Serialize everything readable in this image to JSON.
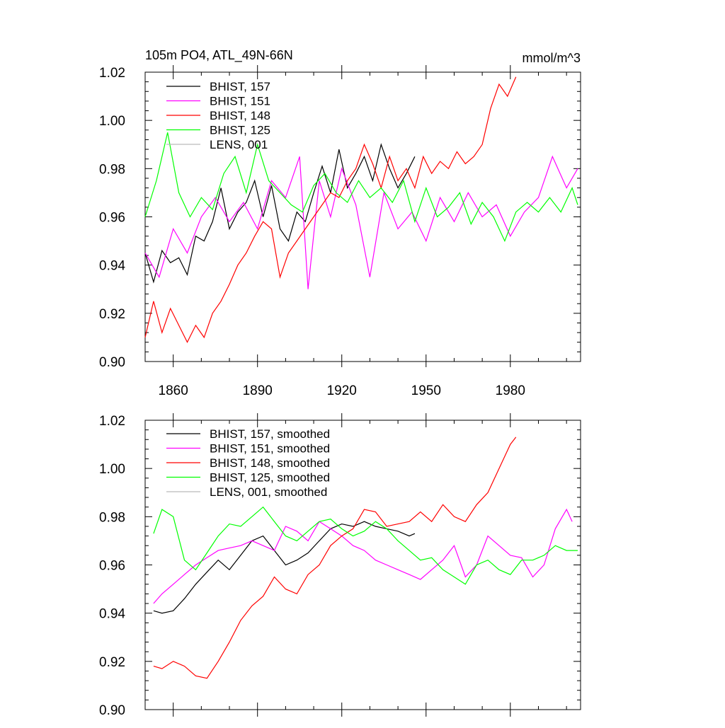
{
  "chart_data": [
    {
      "type": "line",
      "title": "105m PO4, ATL_49N-66N",
      "units": "mmol/m^3",
      "xlim": [
        1850,
        2005
      ],
      "ylim": [
        0.9,
        1.02
      ],
      "xticks": [
        1860,
        1890,
        1920,
        1950,
        1980
      ],
      "yticks": [
        "0.90",
        "0.92",
        "0.94",
        "0.96",
        "0.98",
        "1.00",
        "1.02"
      ],
      "series": [
        {
          "name": "BHIST, 157",
          "color": "#000000",
          "x": [
            1850,
            1853,
            1856,
            1859,
            1862,
            1865,
            1868,
            1871,
            1874,
            1877,
            1880,
            1883,
            1886,
            1889,
            1892,
            1895,
            1898,
            1901,
            1904,
            1907,
            1910,
            1913,
            1916,
            1919,
            1922,
            1925,
            1928,
            1931,
            1934,
            1937,
            1940,
            1943,
            1946
          ],
          "y": [
            0.945,
            0.933,
            0.946,
            0.941,
            0.943,
            0.936,
            0.952,
            0.95,
            0.958,
            0.972,
            0.955,
            0.962,
            0.966,
            0.975,
            0.96,
            0.973,
            0.955,
            0.95,
            0.962,
            0.958,
            0.97,
            0.981,
            0.97,
            0.988,
            0.972,
            0.978,
            0.985,
            0.975,
            0.99,
            0.98,
            0.972,
            0.978,
            0.985
          ]
        },
        {
          "name": "BHIST, 151",
          "color": "#ff00ff",
          "x": [
            1850,
            1855,
            1860,
            1865,
            1870,
            1875,
            1880,
            1885,
            1890,
            1895,
            1900,
            1905,
            1908,
            1912,
            1916,
            1920,
            1925,
            1930,
            1935,
            1940,
            1945,
            1950,
            1955,
            1960,
            1965,
            1970,
            1975,
            1980,
            1985,
            1990,
            1995,
            2000,
            2004
          ],
          "y": [
            0.945,
            0.935,
            0.955,
            0.945,
            0.96,
            0.968,
            0.958,
            0.966,
            0.955,
            0.975,
            0.968,
            0.985,
            0.93,
            0.975,
            0.96,
            0.98,
            0.965,
            0.935,
            0.97,
            0.955,
            0.962,
            0.95,
            0.968,
            0.958,
            0.97,
            0.96,
            0.965,
            0.952,
            0.962,
            0.968,
            0.985,
            0.972,
            0.98
          ]
        },
        {
          "name": "BHIST, 148",
          "color": "#ff0000",
          "x": [
            1850,
            1853,
            1856,
            1859,
            1862,
            1865,
            1868,
            1871,
            1874,
            1877,
            1880,
            1883,
            1886,
            1889,
            1892,
            1895,
            1898,
            1901,
            1904,
            1907,
            1910,
            1913,
            1916,
            1919,
            1922,
            1925,
            1928,
            1931,
            1934,
            1937,
            1940,
            1943,
            1946,
            1949,
            1952,
            1955,
            1958,
            1961,
            1964,
            1967,
            1970,
            1973,
            1976,
            1979,
            1982
          ],
          "y": [
            0.91,
            0.925,
            0.912,
            0.922,
            0.915,
            0.908,
            0.915,
            0.91,
            0.92,
            0.925,
            0.932,
            0.94,
            0.945,
            0.952,
            0.958,
            0.955,
            0.935,
            0.945,
            0.95,
            0.955,
            0.96,
            0.965,
            0.97,
            0.968,
            0.975,
            0.98,
            0.99,
            0.982,
            0.972,
            0.985,
            0.975,
            0.98,
            0.972,
            0.985,
            0.978,
            0.983,
            0.98,
            0.987,
            0.982,
            0.985,
            0.99,
            1.005,
            1.015,
            1.01,
            1.018
          ]
        },
        {
          "name": "BHIST, 125",
          "color": "#00ff00",
          "x": [
            1850,
            1854,
            1858,
            1862,
            1866,
            1870,
            1874,
            1878,
            1882,
            1886,
            1890,
            1894,
            1898,
            1902,
            1906,
            1910,
            1914,
            1918,
            1922,
            1926,
            1930,
            1934,
            1938,
            1942,
            1946,
            1950,
            1954,
            1958,
            1962,
            1966,
            1970,
            1974,
            1978,
            1982,
            1986,
            1990,
            1994,
            1998,
            2002,
            2004
          ],
          "y": [
            0.96,
            0.975,
            0.995,
            0.97,
            0.96,
            0.968,
            0.963,
            0.978,
            0.985,
            0.97,
            0.99,
            0.975,
            0.97,
            0.965,
            0.962,
            0.973,
            0.978,
            0.97,
            0.966,
            0.975,
            0.968,
            0.972,
            0.966,
            0.975,
            0.958,
            0.972,
            0.96,
            0.964,
            0.97,
            0.957,
            0.966,
            0.96,
            0.95,
            0.962,
            0.966,
            0.962,
            0.968,
            0.962,
            0.972,
            0.965
          ]
        },
        {
          "name": "LENS, 001",
          "color": "#bbbbbb",
          "x": [],
          "y": []
        }
      ]
    },
    {
      "type": "line",
      "title": "",
      "xlim": [
        1850,
        2005
      ],
      "ylim": [
        0.9,
        1.02
      ],
      "yticks": [
        "0.90",
        "0.92",
        "0.94",
        "0.96",
        "0.98",
        "1.00",
        "1.02"
      ],
      "series": [
        {
          "name": "BHIST, 157, smoothed",
          "color": "#000000",
          "x": [
            1853,
            1856,
            1860,
            1864,
            1868,
            1872,
            1876,
            1880,
            1884,
            1888,
            1892,
            1896,
            1900,
            1904,
            1908,
            1912,
            1916,
            1920,
            1924,
            1928,
            1932,
            1936,
            1940,
            1944,
            1946
          ],
          "y": [
            0.941,
            0.94,
            0.941,
            0.946,
            0.952,
            0.957,
            0.962,
            0.958,
            0.964,
            0.97,
            0.972,
            0.966,
            0.96,
            0.962,
            0.965,
            0.97,
            0.975,
            0.977,
            0.976,
            0.978,
            0.976,
            0.975,
            0.974,
            0.972,
            0.973
          ]
        },
        {
          "name": "BHIST, 151, smoothed",
          "color": "#ff00ff",
          "x": [
            1853,
            1856,
            1860,
            1864,
            1868,
            1872,
            1876,
            1880,
            1884,
            1888,
            1892,
            1896,
            1900,
            1904,
            1908,
            1912,
            1916,
            1920,
            1924,
            1928,
            1932,
            1936,
            1940,
            1944,
            1948,
            1952,
            1956,
            1960,
            1964,
            1968,
            1972,
            1976,
            1980,
            1984,
            1988,
            1992,
            1996,
            2000,
            2002
          ],
          "y": [
            0.944,
            0.948,
            0.952,
            0.956,
            0.96,
            0.963,
            0.966,
            0.967,
            0.968,
            0.97,
            0.968,
            0.966,
            0.976,
            0.974,
            0.97,
            0.978,
            0.975,
            0.972,
            0.968,
            0.966,
            0.962,
            0.96,
            0.958,
            0.956,
            0.954,
            0.958,
            0.962,
            0.968,
            0.955,
            0.96,
            0.972,
            0.968,
            0.964,
            0.963,
            0.955,
            0.96,
            0.975,
            0.983,
            0.978
          ]
        },
        {
          "name": "BHIST, 148, smoothed",
          "color": "#ff0000",
          "x": [
            1853,
            1856,
            1860,
            1864,
            1868,
            1872,
            1876,
            1880,
            1884,
            1888,
            1892,
            1896,
            1900,
            1904,
            1908,
            1912,
            1916,
            1920,
            1924,
            1928,
            1932,
            1936,
            1940,
            1944,
            1948,
            1952,
            1956,
            1960,
            1964,
            1968,
            1972,
            1976,
            1980,
            1982
          ],
          "y": [
            0.918,
            0.917,
            0.92,
            0.918,
            0.914,
            0.913,
            0.92,
            0.928,
            0.937,
            0.943,
            0.947,
            0.955,
            0.95,
            0.948,
            0.956,
            0.96,
            0.968,
            0.972,
            0.975,
            0.983,
            0.982,
            0.976,
            0.977,
            0.978,
            0.982,
            0.978,
            0.985,
            0.98,
            0.978,
            0.985,
            0.99,
            1.0,
            1.01,
            1.013
          ]
        },
        {
          "name": "BHIST, 125, smoothed",
          "color": "#00ff00",
          "x": [
            1853,
            1856,
            1860,
            1864,
            1868,
            1872,
            1876,
            1880,
            1884,
            1888,
            1892,
            1896,
            1900,
            1904,
            1908,
            1912,
            1916,
            1920,
            1924,
            1928,
            1932,
            1936,
            1940,
            1944,
            1948,
            1952,
            1956,
            1960,
            1964,
            1968,
            1972,
            1976,
            1980,
            1984,
            1988,
            1992,
            1996,
            2000,
            2004
          ],
          "y": [
            0.973,
            0.983,
            0.98,
            0.962,
            0.958,
            0.965,
            0.972,
            0.977,
            0.976,
            0.98,
            0.984,
            0.978,
            0.972,
            0.97,
            0.974,
            0.978,
            0.979,
            0.975,
            0.972,
            0.974,
            0.978,
            0.975,
            0.97,
            0.966,
            0.962,
            0.963,
            0.958,
            0.955,
            0.952,
            0.96,
            0.962,
            0.958,
            0.956,
            0.962,
            0.962,
            0.964,
            0.968,
            0.966,
            0.966
          ]
        },
        {
          "name": "LENS, 001, smoothed",
          "color": "#bbbbbb",
          "x": [],
          "y": []
        }
      ]
    }
  ]
}
